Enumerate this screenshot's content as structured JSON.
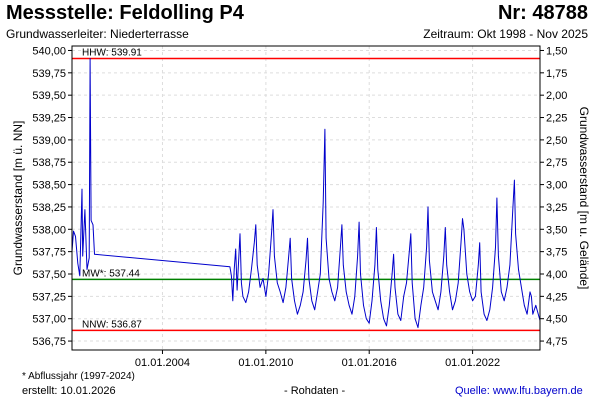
{
  "header": {
    "station": "Messstelle: Feldolling P4",
    "number": "Nr: 48788",
    "aquifer": "Grundwasserleiter:   Niederterrasse",
    "period": "Zeitraum: Okt 1998 - Nov 2025"
  },
  "footer": {
    "footnote": "* Abflussjahr (1997-2024)",
    "created": "erstellt:  10.01.2026",
    "raw": "- Rohdaten -",
    "source": "Quelle:  www.lfu.bayern.de"
  },
  "chart_data": {
    "type": "line",
    "ylabel_left": "Grundwasserstand [m ü. NN]",
    "ylabel_right": "Grundwasserstand [m u. Gelände]",
    "ylim": [
      536.65,
      540.05
    ],
    "yticks": [
      "540,00",
      "539,75",
      "539,50",
      "539,25",
      "539,00",
      "538,75",
      "538,50",
      "538,25",
      "538,00",
      "537,75",
      "537,50",
      "537,25",
      "537,00",
      "536,75"
    ],
    "right_yticks": [
      "1,50",
      "1,75",
      "2,00",
      "2,25",
      "2,50",
      "2,75",
      "3,00",
      "3,25",
      "3,50",
      "3,75",
      "4,00",
      "4,25",
      "4,50",
      "4,75"
    ],
    "xlim": [
      "1998-10-01",
      "2025-11-30"
    ],
    "xticks": [
      {
        "date": "2004-01-01",
        "label": "01.01.2004"
      },
      {
        "date": "2010-01-01",
        "label": "01.01.2010"
      },
      {
        "date": "2016-01-01",
        "label": "01.01.2016"
      },
      {
        "date": "2022-01-01",
        "label": "01.01.2022"
      }
    ],
    "grid": true,
    "reference_lines": [
      {
        "name": "HHW",
        "label": "HHW: 539.91",
        "value": 539.91,
        "color": "#ff0000"
      },
      {
        "name": "MW",
        "label": "MW*: 537.44",
        "value": 537.44,
        "color": "#008000"
      },
      {
        "name": "NNW",
        "label": "NNW: 536.87",
        "value": 536.87,
        "color": "#ff0000"
      }
    ],
    "series": [
      {
        "color": "#0000cc",
        "points": [
          [
            "1998-10-01",
            537.75
          ],
          [
            "1998-11-01",
            537.98
          ],
          [
            "1998-12-15",
            537.92
          ],
          [
            "1999-02-01",
            537.62
          ],
          [
            "1999-03-15",
            537.48
          ],
          [
            "1999-05-01",
            538.45
          ],
          [
            "1999-05-15",
            537.7
          ],
          [
            "1999-07-01",
            538.22
          ],
          [
            "1999-08-15",
            537.55
          ],
          [
            "1999-10-01",
            537.68
          ],
          [
            "1999-10-20",
            539.91
          ],
          [
            "1999-11-10",
            538.1
          ],
          [
            "1999-12-20",
            538.05
          ],
          [
            "2000-01-20",
            537.72
          ],
          [
            "2007-12-01",
            537.58
          ],
          [
            "2008-01-01",
            537.48
          ],
          [
            "2008-02-01",
            537.2
          ],
          [
            "2008-03-01",
            537.55
          ],
          [
            "2008-04-01",
            537.78
          ],
          [
            "2008-05-01",
            537.32
          ],
          [
            "2008-06-01",
            537.62
          ],
          [
            "2008-07-01",
            537.95
          ],
          [
            "2008-08-01",
            537.4
          ],
          [
            "2008-09-01",
            537.25
          ],
          [
            "2008-11-01",
            537.18
          ],
          [
            "2009-01-01",
            537.3
          ],
          [
            "2009-03-01",
            537.55
          ],
          [
            "2009-05-01",
            537.85
          ],
          [
            "2009-06-01",
            538.05
          ],
          [
            "2009-07-01",
            537.6
          ],
          [
            "2009-09-01",
            537.35
          ],
          [
            "2009-11-01",
            537.45
          ],
          [
            "2010-01-01",
            537.25
          ],
          [
            "2010-03-01",
            537.5
          ],
          [
            "2010-05-01",
            537.95
          ],
          [
            "2010-06-01",
            538.22
          ],
          [
            "2010-07-01",
            537.7
          ],
          [
            "2010-09-01",
            537.4
          ],
          [
            "2010-11-01",
            537.3
          ],
          [
            "2011-01-01",
            537.18
          ],
          [
            "2011-03-01",
            537.35
          ],
          [
            "2011-05-01",
            537.7
          ],
          [
            "2011-06-01",
            537.9
          ],
          [
            "2011-07-01",
            537.45
          ],
          [
            "2011-09-01",
            537.2
          ],
          [
            "2011-11-01",
            537.05
          ],
          [
            "2012-01-01",
            537.15
          ],
          [
            "2012-03-01",
            537.3
          ],
          [
            "2012-05-01",
            537.65
          ],
          [
            "2012-06-01",
            537.9
          ],
          [
            "2012-07-01",
            537.45
          ],
          [
            "2012-09-01",
            537.2
          ],
          [
            "2012-11-01",
            537.1
          ],
          [
            "2013-01-01",
            537.3
          ],
          [
            "2013-03-01",
            537.5
          ],
          [
            "2013-05-01",
            538.3
          ],
          [
            "2013-06-05",
            539.12
          ],
          [
            "2013-07-01",
            537.9
          ],
          [
            "2013-09-01",
            537.45
          ],
          [
            "2013-11-01",
            537.3
          ],
          [
            "2014-01-01",
            537.2
          ],
          [
            "2014-03-01",
            537.35
          ],
          [
            "2014-05-01",
            537.8
          ],
          [
            "2014-06-01",
            538.05
          ],
          [
            "2014-07-01",
            537.6
          ],
          [
            "2014-09-01",
            537.3
          ],
          [
            "2014-11-01",
            537.15
          ],
          [
            "2015-01-01",
            537.05
          ],
          [
            "2015-03-01",
            537.25
          ],
          [
            "2015-05-01",
            537.7
          ],
          [
            "2015-06-01",
            538.08
          ],
          [
            "2015-07-01",
            537.5
          ],
          [
            "2015-09-01",
            537.15
          ],
          [
            "2015-11-01",
            537.0
          ],
          [
            "2016-01-01",
            536.95
          ],
          [
            "2016-03-01",
            537.2
          ],
          [
            "2016-05-01",
            537.6
          ],
          [
            "2016-06-01",
            538.02
          ],
          [
            "2016-07-01",
            537.55
          ],
          [
            "2016-09-01",
            537.2
          ],
          [
            "2016-11-01",
            537.0
          ],
          [
            "2017-01-01",
            536.92
          ],
          [
            "2017-03-01",
            537.15
          ],
          [
            "2017-05-01",
            537.5
          ],
          [
            "2017-06-01",
            537.72
          ],
          [
            "2017-07-01",
            537.35
          ],
          [
            "2017-09-01",
            537.05
          ],
          [
            "2017-11-01",
            536.98
          ],
          [
            "2018-01-01",
            537.25
          ],
          [
            "2018-03-01",
            537.4
          ],
          [
            "2018-05-01",
            537.75
          ],
          [
            "2018-06-01",
            537.95
          ],
          [
            "2018-07-01",
            537.4
          ],
          [
            "2018-09-01",
            537.0
          ],
          [
            "2018-11-01",
            536.9
          ],
          [
            "2019-01-01",
            537.15
          ],
          [
            "2019-03-01",
            537.35
          ],
          [
            "2019-05-01",
            537.8
          ],
          [
            "2019-06-01",
            538.25
          ],
          [
            "2019-07-01",
            537.65
          ],
          [
            "2019-09-01",
            537.3
          ],
          [
            "2019-11-01",
            537.2
          ],
          [
            "2020-01-01",
            537.1
          ],
          [
            "2020-03-01",
            537.3
          ],
          [
            "2020-05-01",
            537.7
          ],
          [
            "2020-06-01",
            538.02
          ],
          [
            "2020-07-01",
            537.6
          ],
          [
            "2020-09-01",
            537.3
          ],
          [
            "2020-11-01",
            537.1
          ],
          [
            "2021-01-01",
            537.2
          ],
          [
            "2021-03-01",
            537.4
          ],
          [
            "2021-05-01",
            537.85
          ],
          [
            "2021-06-01",
            538.12
          ],
          [
            "2021-07-01",
            538.0
          ],
          [
            "2021-09-01",
            537.5
          ],
          [
            "2021-11-01",
            537.3
          ],
          [
            "2022-01-01",
            537.2
          ],
          [
            "2022-03-01",
            537.25
          ],
          [
            "2022-05-01",
            537.6
          ],
          [
            "2022-06-01",
            537.85
          ],
          [
            "2022-07-01",
            537.3
          ],
          [
            "2022-09-01",
            537.05
          ],
          [
            "2022-11-01",
            536.98
          ],
          [
            "2023-01-01",
            537.1
          ],
          [
            "2023-03-01",
            537.35
          ],
          [
            "2023-05-01",
            537.8
          ],
          [
            "2023-06-01",
            538.35
          ],
          [
            "2023-07-01",
            537.7
          ],
          [
            "2023-09-01",
            537.3
          ],
          [
            "2023-11-01",
            537.2
          ],
          [
            "2024-01-01",
            537.35
          ],
          [
            "2024-03-01",
            537.6
          ],
          [
            "2024-05-01",
            538.2
          ],
          [
            "2024-06-05",
            538.55
          ],
          [
            "2024-07-01",
            537.95
          ],
          [
            "2024-09-01",
            537.55
          ],
          [
            "2024-11-01",
            537.35
          ],
          [
            "2025-01-01",
            537.15
          ],
          [
            "2025-03-01",
            537.05
          ],
          [
            "2025-05-01",
            537.3
          ],
          [
            "2025-06-01",
            537.25
          ],
          [
            "2025-07-01",
            537.05
          ],
          [
            "2025-09-01",
            537.15
          ],
          [
            "2025-11-30",
            536.98
          ]
        ]
      }
    ]
  }
}
